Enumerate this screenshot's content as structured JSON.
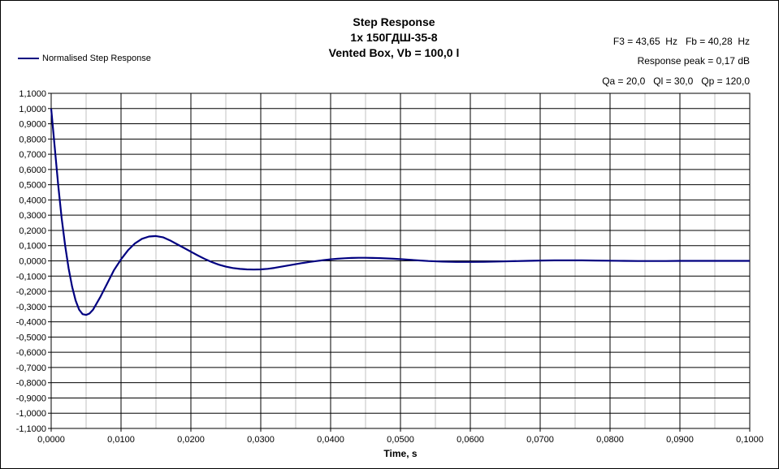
{
  "header": {
    "title": "Step Response",
    "subtitle": "1x 150ГДШ-35-8",
    "box": "Vented Box, Vb = 100,0 l",
    "info_line1": "F3 = 43,65  Hz   Fb = 40,28  Hz",
    "info_line2": "Response peak = 0,17 dB",
    "info_line3": "Qa = 20,0   Ql = 30,0   Qp = 120,0"
  },
  "colors": {
    "series": "#000080",
    "major_grid": "#000000",
    "minor_grid": "#c0c0c0"
  },
  "chart_data": {
    "type": "line",
    "title": "Step Response",
    "xlabel": "Time, s",
    "ylabel": "",
    "xlim": [
      0,
      0.1
    ],
    "ylim": [
      -1.1,
      1.1
    ],
    "x_ticks": [
      0,
      0.01,
      0.02,
      0.03,
      0.04,
      0.05,
      0.06,
      0.07,
      0.08,
      0.09,
      0.1
    ],
    "x_tick_labels": [
      "0,0000",
      "0,0100",
      "0,0200",
      "0,0300",
      "0,0400",
      "0,0500",
      "0,0600",
      "0,0700",
      "0,0800",
      "0,0900",
      "0,1000"
    ],
    "y_ticks": [
      1.1,
      1.0,
      0.9,
      0.8,
      0.7,
      0.6,
      0.5,
      0.4,
      0.3,
      0.2,
      0.1,
      0.0,
      -0.1,
      -0.2,
      -0.3,
      -0.4,
      -0.5,
      -0.6,
      -0.7,
      -0.8,
      -0.9,
      -1.0,
      -1.1
    ],
    "y_tick_labels": [
      "1,1000",
      "1,0000",
      "0,9000",
      "0,8000",
      "0,7000",
      "0,6000",
      "0,5000",
      "0,4000",
      "0,3000",
      "0,2000",
      "0,1000",
      "0,0000",
      "-0,1000",
      "-0,2000",
      "-0,3000",
      "-0,4000",
      "-0,5000",
      "-0,6000",
      "-0,7000",
      "-0,8000",
      "-0,9000",
      "-1,0000",
      "-1,1000"
    ],
    "grid": true,
    "legend": "top-left",
    "series": [
      {
        "name": "Normalised Step Response",
        "x": [
          0,
          0.0005,
          0.001,
          0.0015,
          0.002,
          0.0025,
          0.003,
          0.0035,
          0.004,
          0.0045,
          0.005,
          0.0055,
          0.006,
          0.0065,
          0.007,
          0.008,
          0.009,
          0.01,
          0.011,
          0.012,
          0.013,
          0.014,
          0.015,
          0.016,
          0.017,
          0.018,
          0.019,
          0.02,
          0.021,
          0.022,
          0.023,
          0.024,
          0.025,
          0.026,
          0.027,
          0.028,
          0.029,
          0.03,
          0.031,
          0.032,
          0.033,
          0.034,
          0.035,
          0.036,
          0.037,
          0.038,
          0.039,
          0.04,
          0.041,
          0.042,
          0.043,
          0.044,
          0.045,
          0.046,
          0.047,
          0.048,
          0.049,
          0.05,
          0.052,
          0.054,
          0.056,
          0.058,
          0.06,
          0.062,
          0.064,
          0.066,
          0.068,
          0.07,
          0.072,
          0.074,
          0.076,
          0.078,
          0.08,
          0.082,
          0.084,
          0.086,
          0.088,
          0.09,
          0.092,
          0.094,
          0.096,
          0.098,
          0.1
        ],
        "y": [
          1.0,
          0.75,
          0.5,
          0.28,
          0.1,
          -0.05,
          -0.17,
          -0.26,
          -0.32,
          -0.35,
          -0.355,
          -0.345,
          -0.32,
          -0.28,
          -0.24,
          -0.15,
          -0.06,
          0.01,
          0.07,
          0.115,
          0.145,
          0.16,
          0.163,
          0.155,
          0.135,
          0.11,
          0.085,
          0.06,
          0.035,
          0.012,
          -0.008,
          -0.025,
          -0.038,
          -0.047,
          -0.053,
          -0.056,
          -0.057,
          -0.056,
          -0.052,
          -0.046,
          -0.038,
          -0.03,
          -0.022,
          -0.014,
          -0.007,
          -0.001,
          0.005,
          0.01,
          0.014,
          0.017,
          0.019,
          0.02,
          0.02,
          0.019,
          0.018,
          0.016,
          0.014,
          0.011,
          0.005,
          -0.001,
          -0.005,
          -0.007,
          -0.007,
          -0.006,
          -0.004,
          -0.002,
          0.0,
          0.002,
          0.003,
          0.003,
          0.003,
          0.002,
          0.001,
          0.0,
          -0.001,
          -0.001,
          -0.001,
          0.0,
          0.0,
          0.0,
          0.0,
          0.0,
          0.0
        ]
      }
    ]
  }
}
